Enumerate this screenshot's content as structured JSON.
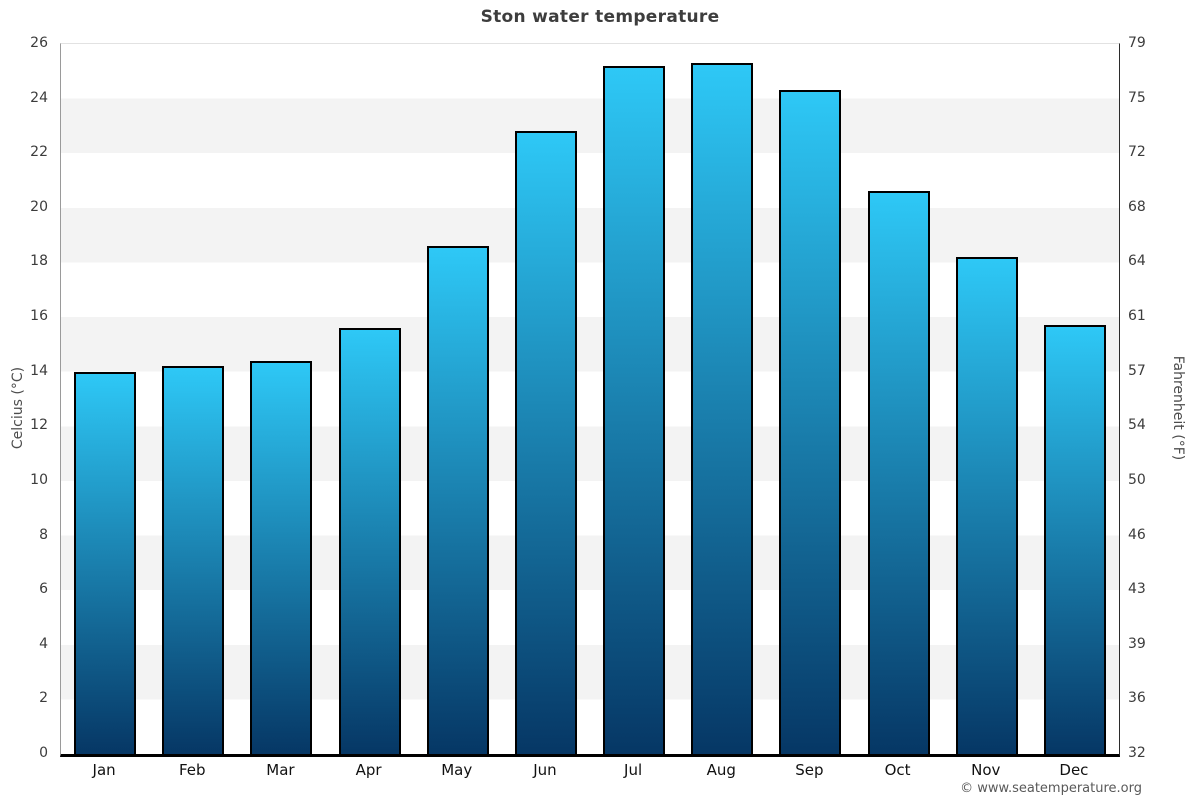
{
  "title": "Ston water temperature",
  "footer": {
    "credit": "© www.seatemperature.org"
  },
  "axes": {
    "left_label": "Celcius (°C)",
    "right_label": "Fahrenheit (°F)",
    "celsius_ticks": [
      0,
      2,
      4,
      6,
      8,
      10,
      12,
      14,
      16,
      18,
      20,
      22,
      24,
      26
    ],
    "fahrenheit_ticks": [
      32,
      36,
      39,
      43,
      46,
      50,
      54,
      57,
      61,
      64,
      68,
      72,
      75,
      79
    ]
  },
  "chart_data": {
    "type": "bar",
    "title": "Ston water temperature",
    "categories": [
      "Jan",
      "Feb",
      "Mar",
      "Apr",
      "May",
      "Jun",
      "Jul",
      "Aug",
      "Sep",
      "Oct",
      "Nov",
      "Dec"
    ],
    "values": [
      14.0,
      14.2,
      14.4,
      15.6,
      18.6,
      22.8,
      25.2,
      25.3,
      24.3,
      20.6,
      18.2,
      15.7
    ],
    "xlabel": "",
    "ylabel_left": "Celcius (°C)",
    "ylabel_right": "Fahrenheit (°F)",
    "ylim": [
      0,
      26
    ],
    "band_step": 2,
    "grid": "alternating-bands",
    "legend": "none",
    "colors": {
      "bar_gradient_top": "#2ec8f6",
      "bar_gradient_bottom": "#063765",
      "bar_border": "#000000",
      "band_white": "#ffffff",
      "band_gray": "#f3f3f3"
    }
  }
}
